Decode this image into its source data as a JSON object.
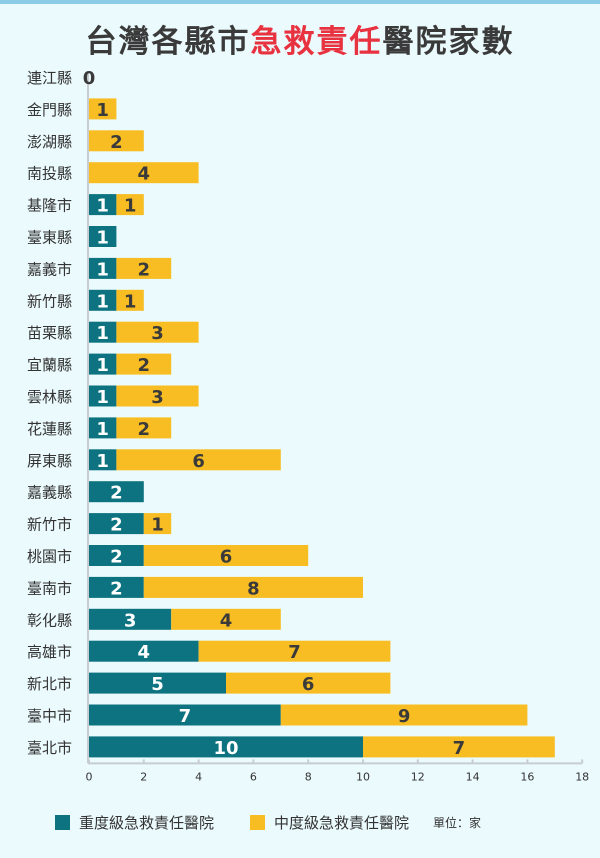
{
  "title": {
    "part1": "台灣各縣市",
    "highlight": "急救責任",
    "part2": "醫院家數"
  },
  "colors": {
    "severe": "#0e7380",
    "moderate": "#f7bd22",
    "highlight": "#e8323f"
  },
  "legend": {
    "severe": "重度級急救責任醫院",
    "moderate": "中度級急救責任醫院",
    "unit": "單位：家"
  },
  "chart_data": {
    "type": "bar",
    "orientation": "horizontal",
    "stacked": true,
    "title": "台灣各縣市急救責任醫院家數",
    "categories": [
      "連江縣",
      "金門縣",
      "澎湖縣",
      "南投縣",
      "基隆市",
      "臺東縣",
      "嘉義市",
      "新竹縣",
      "苗栗縣",
      "宜蘭縣",
      "雲林縣",
      "花蓮縣",
      "屏東縣",
      "嘉義縣",
      "新竹市",
      "桃園市",
      "臺南市",
      "彰化縣",
      "高雄市",
      "新北市",
      "臺中市",
      "臺北市"
    ],
    "series": [
      {
        "name": "重度級急救責任醫院",
        "values": [
          0,
          0,
          0,
          0,
          1,
          1,
          1,
          1,
          1,
          1,
          1,
          1,
          1,
          2,
          2,
          2,
          2,
          3,
          4,
          5,
          7,
          10
        ]
      },
      {
        "name": "中度級急救責任醫院",
        "values": [
          0,
          1,
          2,
          4,
          1,
          0,
          2,
          1,
          3,
          2,
          3,
          2,
          6,
          0,
          1,
          6,
          8,
          4,
          7,
          6,
          9,
          7
        ]
      }
    ],
    "xlim": [
      0,
      18
    ],
    "xticks": [
      "0",
      "2",
      "4",
      "6",
      "8",
      "10",
      "12",
      "14",
      "16",
      "18"
    ],
    "legend_position": "bottom",
    "unit": "單位：家"
  }
}
